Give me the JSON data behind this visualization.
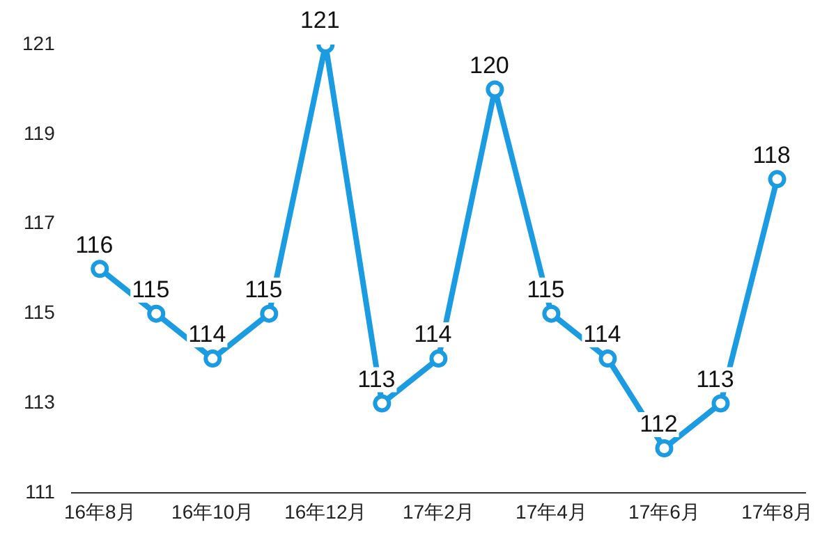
{
  "chart_data": {
    "type": "line",
    "categories": [
      "16年8月",
      null,
      "16年10月",
      null,
      "16年12月",
      null,
      "17年2月",
      null,
      "17年4月",
      null,
      "17年6月",
      null,
      "17年8月"
    ],
    "series": [
      {
        "color": "#1b9ce2",
        "values": [
          116,
          115,
          114,
          115,
          121,
          113,
          114,
          120,
          115,
          114,
          112,
          113,
          118
        ]
      }
    ],
    "ylim": [
      111,
      121
    ],
    "yticks": [
      111,
      113,
      115,
      117,
      119,
      121
    ],
    "grid": false,
    "legend": false,
    "marker": "circle",
    "line_style": "solid",
    "data_labels": true
  }
}
